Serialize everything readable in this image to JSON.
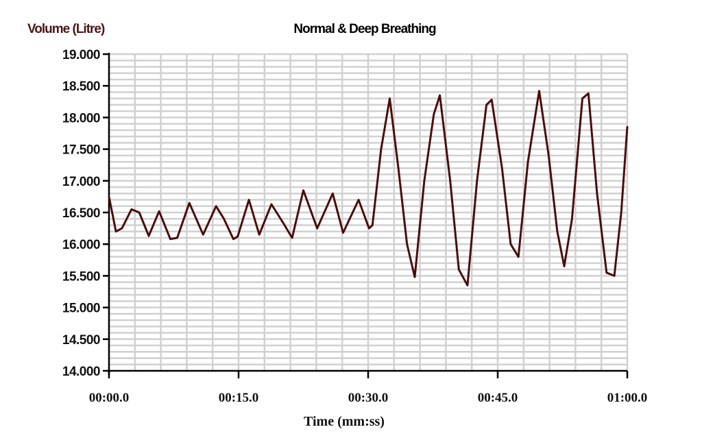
{
  "chart_data": {
    "type": "line",
    "title": "Normal & Deep Breathing",
    "ylabel": "Volume (Litre)",
    "xlabel": "Time (mm:ss)",
    "x_ticks": [
      "00:00.0",
      "00:15.0",
      "00:30.0",
      "00:45.0",
      "01:00.0"
    ],
    "y_ticks": [
      "19.000",
      "18.500",
      "18.000",
      "17.500",
      "17.000",
      "16.500",
      "16.000",
      "15.500",
      "15.000",
      "14.500",
      "14.000"
    ],
    "xlim_seconds": [
      0,
      60
    ],
    "ylim": [
      14.0,
      19.0
    ],
    "grid": true,
    "legend": "none",
    "colors": {
      "line": "#4a0c0c",
      "grid": "#d0d0d0",
      "axis": "#000000"
    },
    "series": [
      {
        "x_seconds": [
          0,
          0.8,
          1.5,
          2.6,
          3.5,
          4.6,
          5.8,
          7.1,
          7.9,
          9.3,
          10.9,
          12.4,
          13.3,
          14.4,
          14.9,
          16.2,
          17.4,
          18.8,
          20.1,
          21.2,
          22.5,
          24.1,
          25.9,
          27.1,
          28.9,
          30.1,
          30.5,
          31.5,
          32.5,
          33.5,
          34.5,
          35.4,
          36.5,
          37.6,
          38.3,
          39.5,
          40.5,
          41.5,
          42.6,
          43.7,
          44.3,
          45.5,
          46.5,
          47.4,
          48.5,
          49.8,
          50.9,
          51.9,
          52.7,
          53.6,
          54.8,
          55.5,
          56.5,
          57.6,
          58.5,
          59.3,
          60.0
        ],
        "y": [
          16.75,
          16.2,
          16.25,
          16.55,
          16.5,
          16.13,
          16.52,
          16.08,
          16.1,
          16.65,
          16.15,
          16.6,
          16.4,
          16.08,
          16.12,
          16.7,
          16.15,
          16.63,
          16.35,
          16.1,
          16.85,
          16.25,
          16.8,
          16.18,
          16.7,
          16.25,
          16.3,
          17.5,
          18.3,
          17.2,
          16.0,
          15.48,
          17.0,
          18.05,
          18.35,
          17.0,
          15.6,
          15.35,
          17.0,
          18.2,
          18.28,
          17.2,
          16.0,
          15.8,
          17.3,
          18.42,
          17.4,
          16.2,
          15.65,
          16.4,
          18.3,
          18.38,
          16.8,
          15.55,
          15.5,
          16.5,
          17.85
        ]
      }
    ]
  }
}
